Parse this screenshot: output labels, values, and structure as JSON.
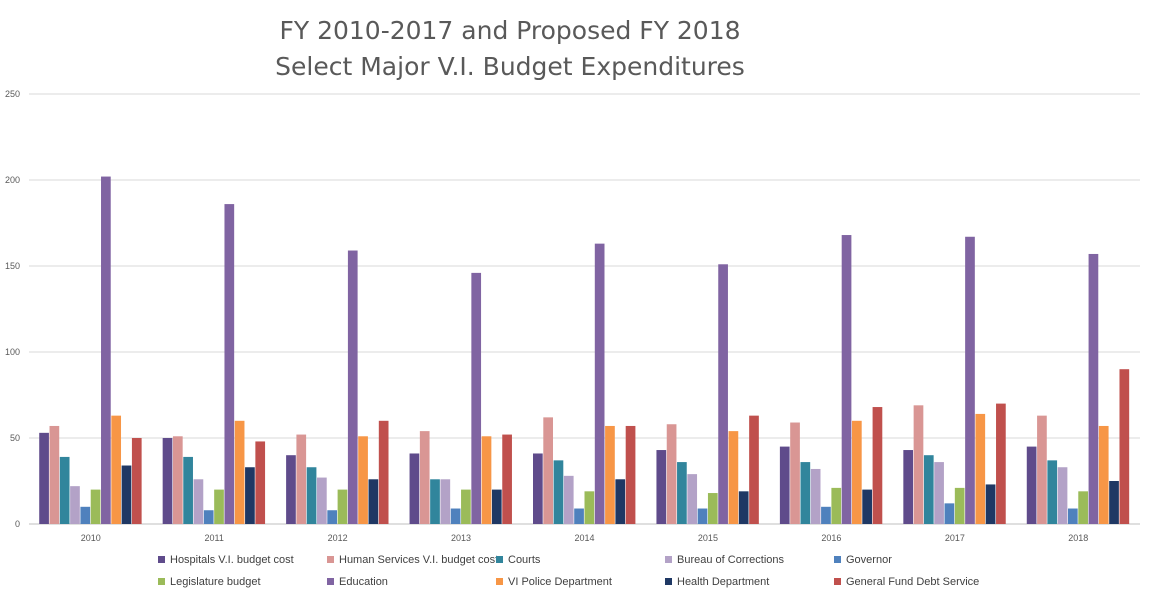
{
  "chart_data": {
    "type": "bar",
    "title_line1": "FY 2010-2017 and Proposed FY 2018",
    "title_line2": "Select Major V.I. Budget Expenditures",
    "xlabel": "",
    "ylabel": "",
    "ylim": [
      0,
      250
    ],
    "yticks": [
      0,
      50,
      100,
      150,
      200,
      250
    ],
    "grid": true,
    "legend_position": "bottom",
    "categories": [
      "2010",
      "2011",
      "2012",
      "2013",
      "2014",
      "2015",
      "2016",
      "2017",
      "2018"
    ],
    "series": [
      {
        "name": "Hospitals V.I. budget cost",
        "color": "#5f4b8b",
        "values": [
          53,
          50,
          40,
          41,
          41,
          43,
          45,
          43,
          45
        ]
      },
      {
        "name": "Human Services V.I. budget cost",
        "color": "#d99694",
        "values": [
          57,
          51,
          52,
          54,
          62,
          58,
          59,
          69,
          63
        ]
      },
      {
        "name": "Courts",
        "color": "#31859c",
        "values": [
          39,
          39,
          33,
          26,
          37,
          36,
          36,
          40,
          37
        ]
      },
      {
        "name": "Bureau of Corrections",
        "color": "#b3a2c7",
        "values": [
          22,
          26,
          27,
          26,
          28,
          29,
          32,
          36,
          33
        ]
      },
      {
        "name": "Governor",
        "color": "#4f81bd",
        "values": [
          10,
          8,
          8,
          9,
          9,
          9,
          10,
          12,
          9
        ]
      },
      {
        "name": "Legislature budget",
        "color": "#9bbb59",
        "values": [
          20,
          20,
          20,
          20,
          19,
          18,
          21,
          21,
          19
        ]
      },
      {
        "name": "Education",
        "color": "#8064a2",
        "values": [
          202,
          186,
          159,
          146,
          163,
          151,
          168,
          167,
          157
        ]
      },
      {
        "name": "VI Police Department",
        "color": "#f79646",
        "values": [
          63,
          60,
          51,
          51,
          57,
          54,
          60,
          64,
          57
        ]
      },
      {
        "name": "Health Department",
        "color": "#1f3864",
        "values": [
          34,
          33,
          26,
          20,
          26,
          19,
          20,
          23,
          25
        ]
      },
      {
        "name": "General Fund Debt Service",
        "color": "#c0504d",
        "values": [
          50,
          48,
          60,
          52,
          57,
          63,
          68,
          70,
          90
        ]
      }
    ]
  }
}
